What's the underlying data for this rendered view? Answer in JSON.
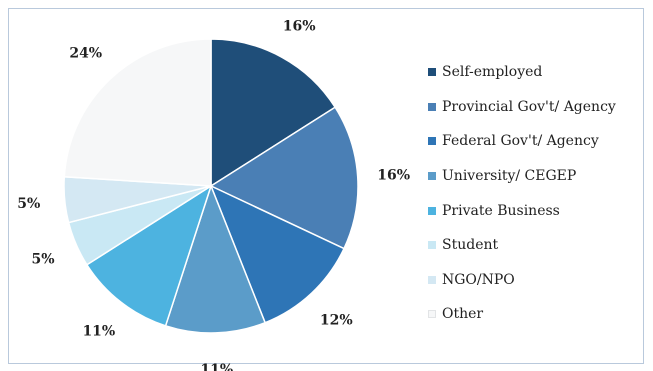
{
  "chart_data": {
    "type": "pie",
    "title": "",
    "start_angle_deg": 0,
    "direction": "clockwise",
    "legend_position": "right",
    "slices": [
      {
        "label": "Self-employed",
        "value": 16,
        "display": "16%",
        "color": "#1f4e79"
      },
      {
        "label": "Provincial Gov't/ Agency",
        "value": 16,
        "display": "16%",
        "color": "#4a7fb5"
      },
      {
        "label": "Federal Gov't/ Agency",
        "value": 12,
        "display": "12%",
        "color": "#2e75b6"
      },
      {
        "label": "University/ CEGEP",
        "value": 11,
        "display": "11%",
        "color": "#5b9cc9"
      },
      {
        "label": "Private Business",
        "value": 11,
        "display": "11%",
        "color": "#4db3e0"
      },
      {
        "label": "Student",
        "value": 5,
        "display": "5%",
        "color": "#c9e8f4"
      },
      {
        "label": "NGO/NPO",
        "value": 5,
        "display": "5%",
        "color": "#d4e8f3"
      },
      {
        "label": "Other",
        "value": 24,
        "display": "24%",
        "color": "#f6f7f8"
      }
    ]
  }
}
